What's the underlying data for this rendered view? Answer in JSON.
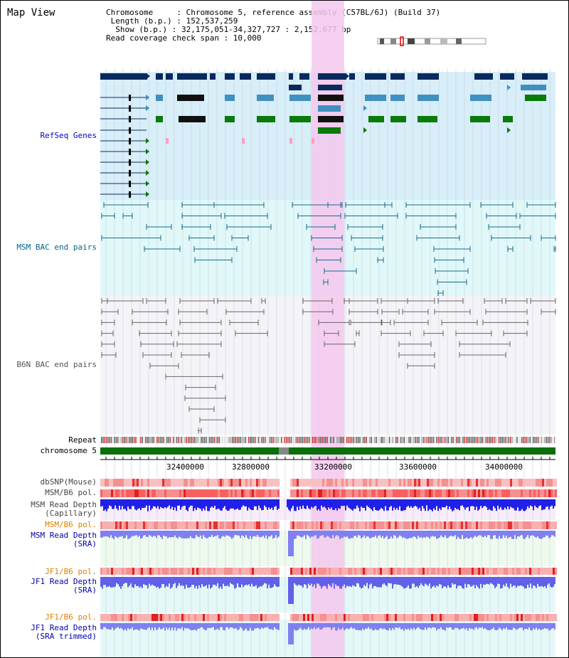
{
  "header": {
    "title": "Map View",
    "chromosome_line": "Chromosome     : Chromosome 5, reference assembly (C57BL/6J) (Build 37)",
    "length_line": " Length (b.p.) : 152,537,259",
    "show_line": "  Show (b.p.) : 32,175,051-34,327,727 : 2,152,677 bp",
    "coverage_line": "Read coverage check span : 10,000"
  },
  "tracks": {
    "refseq": "RefSeq Genes",
    "msm_bac": "MSM BAC end pairs",
    "b6n_bac": "B6N BAC end pairs",
    "repeat": "Repeat",
    "chromosome": "chromosome 5",
    "dbsnp": "dbSNP(Mouse)",
    "msm_b6_pol": "MSM/B6 pol.",
    "msm_depth_cap": "MSM Read Depth\n(Capillary)",
    "msm_b6_pol2": "MSM/B6 pol.",
    "msm_depth_sra": "MSM Read Depth\n(SRA)",
    "jf1_b6_pol": "JF1/B6 pol.",
    "jf1_depth_sra": "JF1 Read Depth\n(SRA)",
    "jf1_b6_pol2": "JF1/B6 pol.",
    "jf1_depth_trim": "JF1 Read Depth\n(SRA trimmed)"
  },
  "axis": {
    "ticks": [
      "32400000",
      "32800000",
      "33200000",
      "33600000",
      "34000000"
    ]
  },
  "colors": {
    "refseq_label": "#0000cc",
    "msm_label": "#006688",
    "b6n_label": "#555555",
    "pol_label": "#e08000",
    "depth_label": "#0000aa",
    "highlight": "#f5c8ee"
  }
}
